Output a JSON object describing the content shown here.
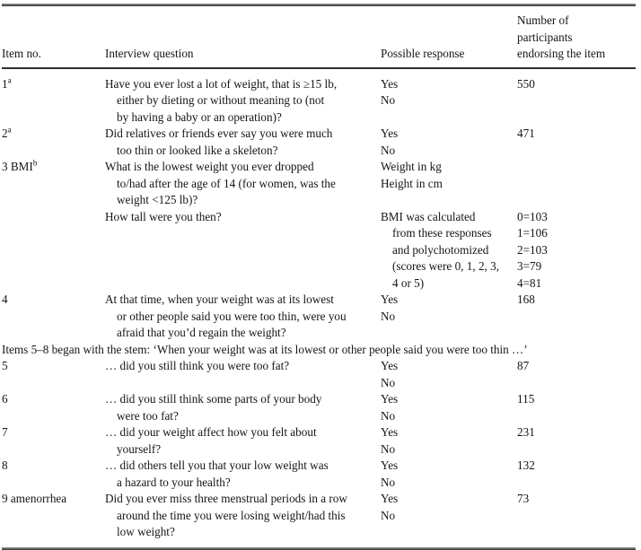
{
  "header": {
    "item": "Item no.",
    "question": "Interview question",
    "response": "Possible response",
    "count_l1": "Number of",
    "count_l2": "participants",
    "count_l3": "endorsing the item"
  },
  "stem_note": "Items 5–8 began with the stem: ‘When your weight was at its lowest or other people said you were too thin …’",
  "rows": [
    {
      "item": "1",
      "item_sup": "a",
      "q": [
        "Have you ever lost a lot of weight, that is ≥15 lb,",
        "either by dieting or without meaning to (not",
        "by having a baby or an operation)?"
      ],
      "r": [
        "Yes",
        "No"
      ],
      "n": [
        "550"
      ]
    },
    {
      "item": "2",
      "item_sup": "a",
      "q": [
        "Did relatives or friends ever say you were much",
        "too thin or looked like a skeleton?"
      ],
      "r": [
        "Yes",
        "No"
      ],
      "n": [
        "471"
      ]
    },
    {
      "item": "3 BMI",
      "item_sup": "b",
      "q": [
        "What is the lowest weight you ever dropped",
        "to/had after the age of 14 (for women, was the",
        "weight <125 lb)?"
      ],
      "r": [
        "Weight in kg",
        "Height in cm"
      ],
      "n": []
    },
    {
      "item": "",
      "q": [
        "How tall were you then?"
      ],
      "r": [
        "BMI was calculated",
        "from these responses",
        "and polychotomized",
        "(scores were 0, 1, 2, 3,",
        "4 or 5)"
      ],
      "n": [
        "0=103",
        "1=106",
        "2=103",
        "3=79",
        "4=81"
      ]
    },
    {
      "item": "4",
      "q": [
        "At that time, when your weight was at its lowest",
        "or other people said you were too thin, were you",
        "afraid that you’d regain the weight?"
      ],
      "r": [
        "Yes",
        "No"
      ],
      "n": [
        "168"
      ]
    },
    {
      "item": "5",
      "q": [
        "… did you still think you were too fat?"
      ],
      "r": [
        "Yes",
        "No"
      ],
      "n": [
        "87"
      ]
    },
    {
      "item": "6",
      "q": [
        "… did you still think some parts of your body",
        "were too fat?"
      ],
      "r": [
        "Yes",
        "No"
      ],
      "n": [
        "115"
      ]
    },
    {
      "item": "7",
      "q": [
        "… did your weight affect how you felt about",
        "yourself?"
      ],
      "r": [
        "Yes",
        "No"
      ],
      "n": [
        "231"
      ]
    },
    {
      "item": "8",
      "q": [
        "… did others tell you that your low weight was",
        "a hazard to your health?"
      ],
      "r": [
        "Yes",
        "No"
      ],
      "n": [
        "132"
      ]
    },
    {
      "item": "9 amenorrhea",
      "q": [
        "Did you ever miss three menstrual periods in a row",
        "around the time you were losing weight/had this",
        "low weight?"
      ],
      "r": [
        "Yes",
        "No"
      ],
      "n": [
        "73"
      ]
    }
  ]
}
